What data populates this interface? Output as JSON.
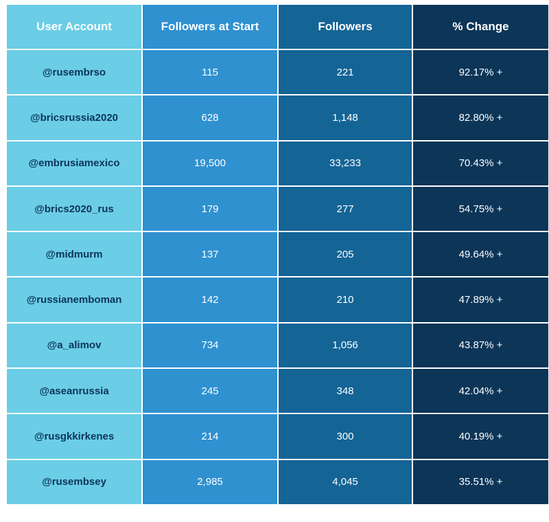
{
  "chart_data": {
    "type": "table",
    "columns": [
      "User Account",
      "Followers at Start",
      "Followers",
      "% Change"
    ],
    "rows": [
      [
        "@rusembrso",
        "115",
        "221",
        "92.17% +"
      ],
      [
        "@bricsrussia2020",
        "628",
        "1,148",
        "82.80% +"
      ],
      [
        "@embrusiamexico",
        "19,500",
        "33,233",
        "70.43% +"
      ],
      [
        "@brics2020_rus",
        "179",
        "277",
        "54.75% +"
      ],
      [
        "@midmurm",
        "137",
        "205",
        "49.64% +"
      ],
      [
        "@russianemboman",
        "142",
        "210",
        "47.89% +"
      ],
      [
        "@a_alimov",
        "734",
        "1,056",
        "43.87% +"
      ],
      [
        "@aseanrussia",
        "245",
        "348",
        "42.04% +"
      ],
      [
        "@rusgkkirkenes",
        "214",
        "300",
        "40.19% +"
      ],
      [
        "@rusembsey",
        "2,985",
        "4,045",
        "35.51% +"
      ]
    ],
    "column_colors": [
      "#6bcde6",
      "#2f91d0",
      "#146496",
      "#0c3558"
    ]
  }
}
